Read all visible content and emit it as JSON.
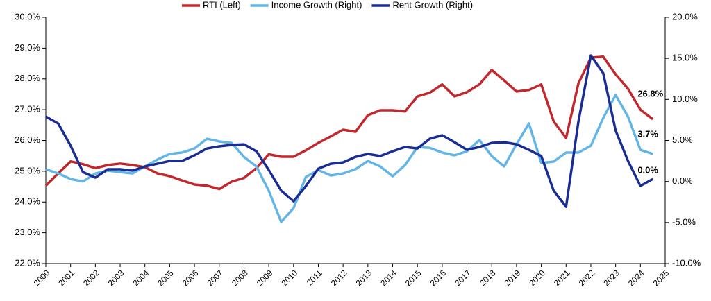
{
  "chart_data": {
    "type": "line",
    "legend_position": "top",
    "x": [
      2000,
      2000.5,
      2001,
      2001.5,
      2002,
      2002.5,
      2003,
      2003.5,
      2004,
      2004.5,
      2005,
      2005.5,
      2006,
      2006.5,
      2007,
      2007.5,
      2008,
      2008.5,
      2009,
      2009.5,
      2010,
      2010.5,
      2011,
      2011.5,
      2012,
      2012.5,
      2013,
      2013.5,
      2014,
      2014.5,
      2015,
      2015.5,
      2016,
      2016.5,
      2017,
      2017.5,
      2018,
      2018.5,
      2019,
      2019.5,
      2020,
      2020.5,
      2021,
      2021.5,
      2022,
      2022.5,
      2023,
      2023.5,
      2024,
      2024.5
    ],
    "xlim": [
      2000,
      2025
    ],
    "xticks": [
      2000,
      2001,
      2002,
      2003,
      2004,
      2005,
      2006,
      2007,
      2008,
      2009,
      2010,
      2011,
      2012,
      2013,
      2014,
      2015,
      2016,
      2017,
      2018,
      2019,
      2020,
      2021,
      2022,
      2023,
      2024,
      2025
    ],
    "ylim": [
      22,
      30
    ],
    "yticks": [
      {
        "value": 22,
        "label": "22.0%"
      },
      {
        "value": 23,
        "label": "23.0%"
      },
      {
        "value": 24,
        "label": "24.0%"
      },
      {
        "value": 25,
        "label": "25.0%"
      },
      {
        "value": 26,
        "label": "26.0%"
      },
      {
        "value": 27,
        "label": "27.0%"
      },
      {
        "value": 28,
        "label": "28.0%"
      },
      {
        "value": 29,
        "label": "29.0%"
      },
      {
        "value": 30,
        "label": "30.0%"
      }
    ],
    "y2lim": [
      -10,
      20
    ],
    "y2ticks": [
      {
        "value": -10,
        "label": "-10.0%"
      },
      {
        "value": -5,
        "label": "-5.0%"
      },
      {
        "value": 0,
        "label": "0.0%"
      },
      {
        "value": 5,
        "label": "5.0%"
      },
      {
        "value": 10,
        "label": "10.0%"
      },
      {
        "value": 15,
        "label": "15.0%"
      },
      {
        "value": 20,
        "label": "20.0%"
      }
    ],
    "series": [
      {
        "name": "RTI (Left)",
        "color": "#c0282d",
        "values": [
          24.53,
          24.93,
          25.32,
          25.23,
          25.1,
          25.2,
          25.25,
          25.2,
          25.13,
          24.93,
          24.84,
          24.7,
          24.57,
          24.53,
          24.42,
          24.66,
          24.78,
          25.1,
          25.55,
          25.47,
          25.47,
          25.68,
          25.92,
          26.13,
          26.35,
          26.28,
          26.82,
          26.98,
          26.98,
          26.94,
          27.43,
          27.55,
          27.82,
          27.43,
          27.57,
          27.82,
          28.29,
          27.95,
          27.59,
          27.64,
          27.82,
          26.62,
          26.08,
          27.86,
          28.69,
          28.72,
          28.15,
          27.68,
          27.0,
          26.69
        ]
      },
      {
        "name": "Income Growth (Right)",
        "color": "#63b5e5",
        "axis": "y2",
        "values": [
          1.49,
          0.98,
          0.3,
          0.0,
          0.98,
          1.32,
          1.15,
          0.98,
          1.83,
          2.67,
          3.35,
          3.52,
          4.02,
          5.2,
          4.87,
          4.7,
          3.0,
          1.83,
          -1.13,
          -4.94,
          -3.25,
          0.56,
          1.4,
          0.73,
          0.98,
          1.49,
          2.5,
          1.83,
          0.64,
          2.0,
          4.2,
          4.1,
          3.52,
          3.18,
          3.68,
          5.04,
          3.1,
          1.83,
          4.53,
          7.07,
          2.25,
          2.42,
          3.52,
          3.52,
          4.36,
          7.74,
          10.53,
          7.9,
          3.85,
          3.35
        ]
      },
      {
        "name": "Rent Growth (Right)",
        "color": "#1a2d94",
        "axis": "y2",
        "values": [
          7.9,
          7.07,
          4.36,
          1.15,
          0.47,
          1.49,
          1.49,
          1.32,
          1.83,
          2.16,
          2.5,
          2.5,
          3.18,
          4.02,
          4.28,
          4.45,
          4.53,
          3.68,
          1.4,
          -1.13,
          -2.4,
          -0.54,
          1.57,
          2.16,
          2.33,
          3.0,
          3.35,
          3.1,
          3.68,
          4.2,
          4.02,
          5.2,
          5.63,
          4.78,
          3.85,
          4.2,
          4.7,
          4.78,
          4.53,
          3.85,
          3.1,
          -1.13,
          -3.08,
          7.32,
          15.35,
          13.2,
          6.22,
          2.5,
          -0.54,
          0.3
        ]
      }
    ],
    "annotations": [
      "26.8%",
      "3.7%",
      "0.0%"
    ]
  }
}
